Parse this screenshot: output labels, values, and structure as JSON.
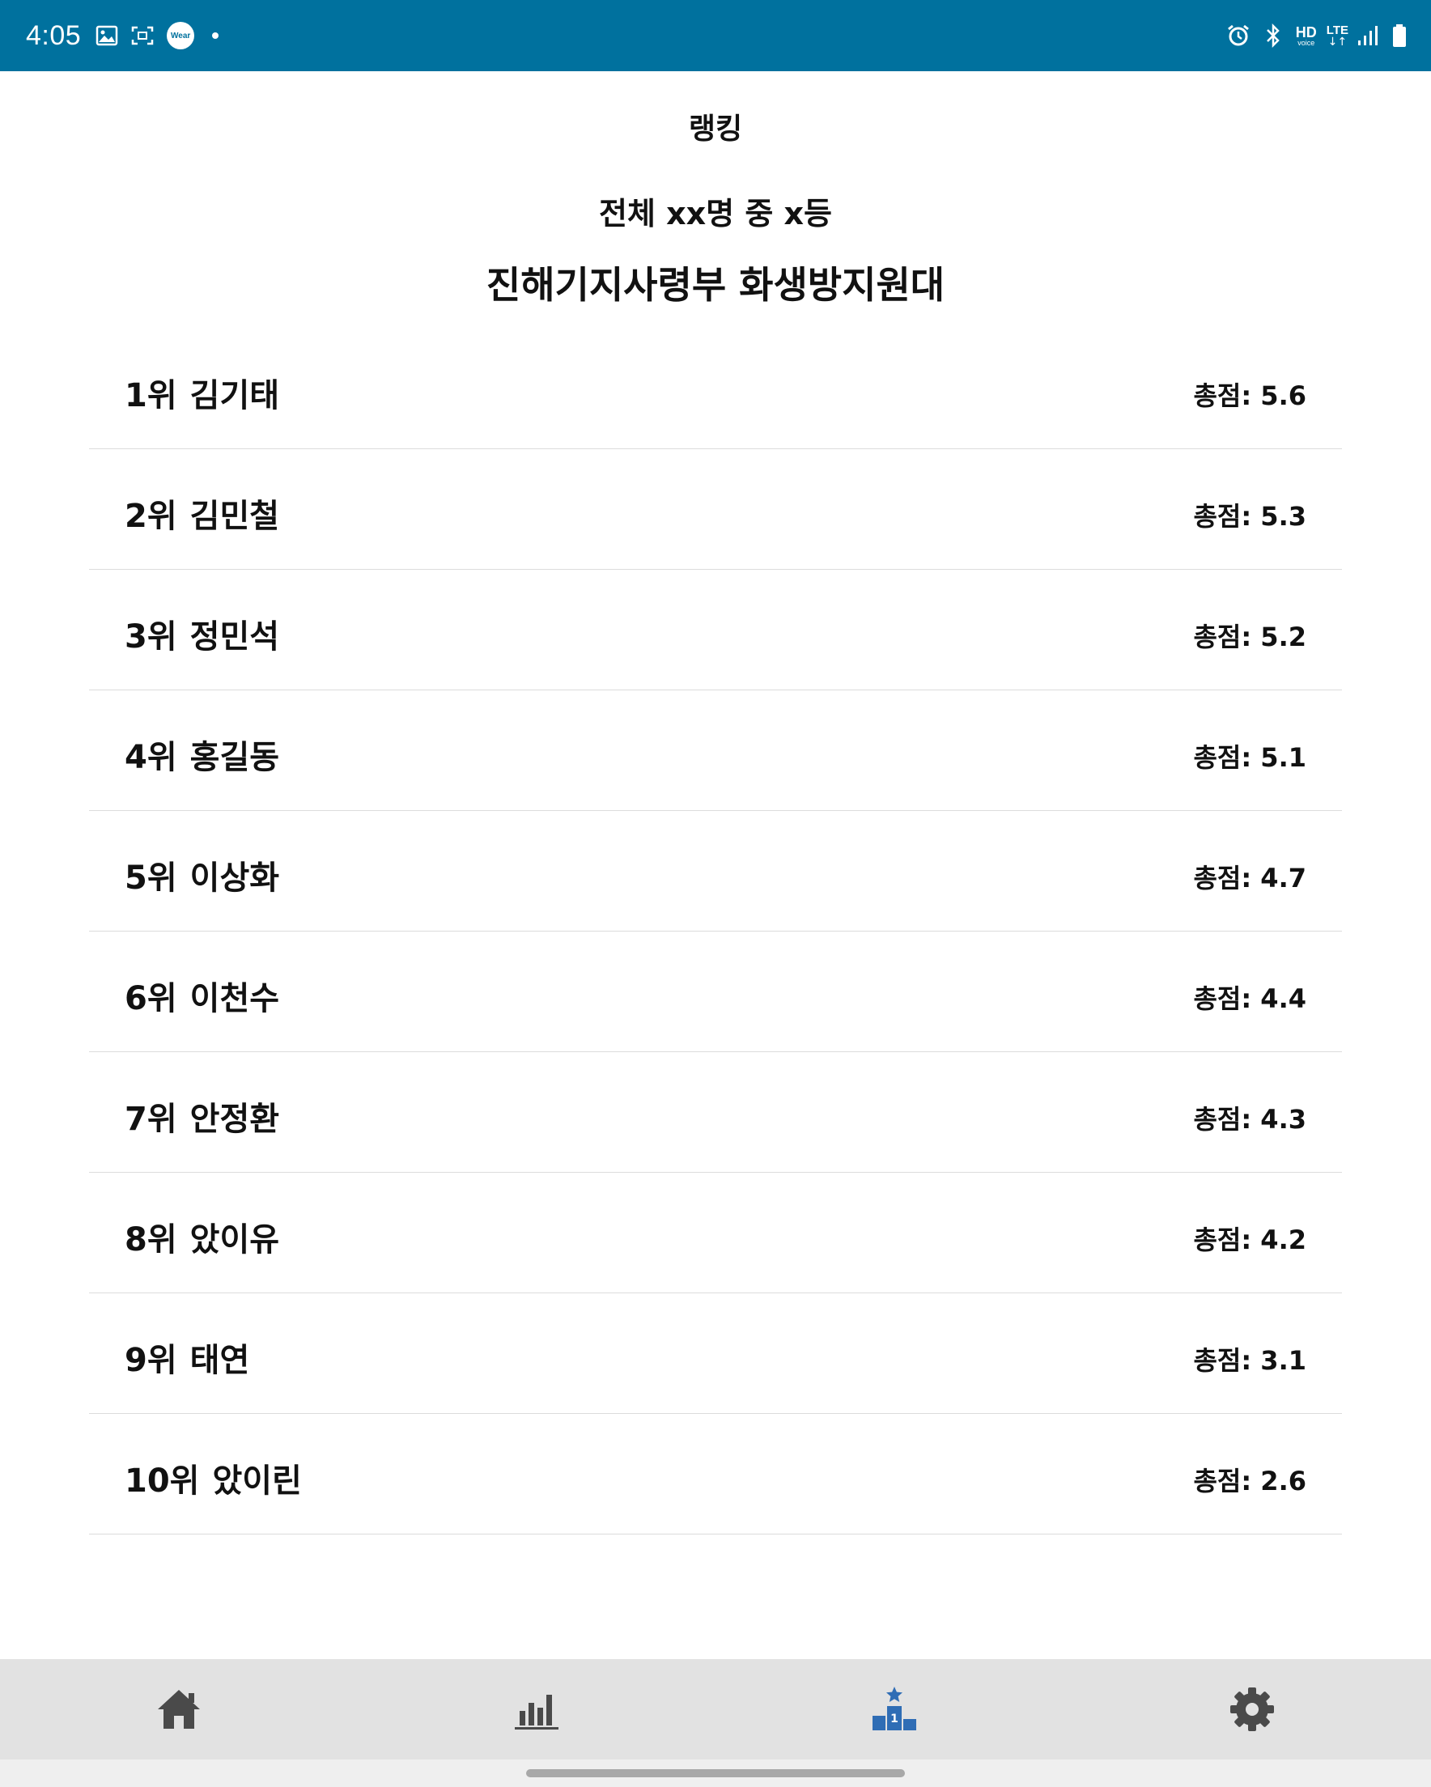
{
  "status_bar": {
    "time": "4:05",
    "wear_label": "Wear",
    "hd_label": "HD",
    "hd_sub": "voice",
    "lte_label": "LTE",
    "lte_arrows": "↓↑",
    "icons": [
      "image-icon",
      "screenshot-icon",
      "wear-icon",
      "notification-dot",
      "alarm-icon",
      "bluetooth-icon",
      "signal-icon",
      "battery-icon"
    ]
  },
  "header": {
    "title": "랭킹",
    "summary": "전체 xx명 중 x등",
    "unit": "진해기지사령부 화생방지원대"
  },
  "ranking": [
    {
      "rank": "1위",
      "name": "김기태",
      "score": "총점: 5.6"
    },
    {
      "rank": "2위",
      "name": "김민철",
      "score": "총점: 5.3"
    },
    {
      "rank": "3위",
      "name": "정민석",
      "score": "총점: 5.2"
    },
    {
      "rank": "4위",
      "name": "홍길동",
      "score": "총점: 5.1"
    },
    {
      "rank": "5위",
      "name": "이상화",
      "score": "총점: 4.7"
    },
    {
      "rank": "6위",
      "name": "이천수",
      "score": "총점: 4.4"
    },
    {
      "rank": "7위",
      "name": "안정환",
      "score": "총점: 4.3"
    },
    {
      "rank": "8위",
      "name": "았이유",
      "score": "총점: 4.2"
    },
    {
      "rank": "9위",
      "name": "태연",
      "score": "총점: 3.1"
    },
    {
      "rank": "10위",
      "name": "았이린",
      "score": "총점: 2.6"
    }
  ],
  "bottom_nav": {
    "items": [
      {
        "icon": "home-icon",
        "active": false
      },
      {
        "icon": "bar-chart-icon",
        "active": false
      },
      {
        "icon": "ranking-podium-icon",
        "active": true
      },
      {
        "icon": "gear-icon",
        "active": false
      }
    ],
    "active_color": "#2f6db5",
    "inactive_color": "#4a4a4a"
  },
  "colors": {
    "status_bar_bg": "#00719e",
    "nav_bg": "#e2e2e2",
    "divider": "#dcdcdc"
  }
}
